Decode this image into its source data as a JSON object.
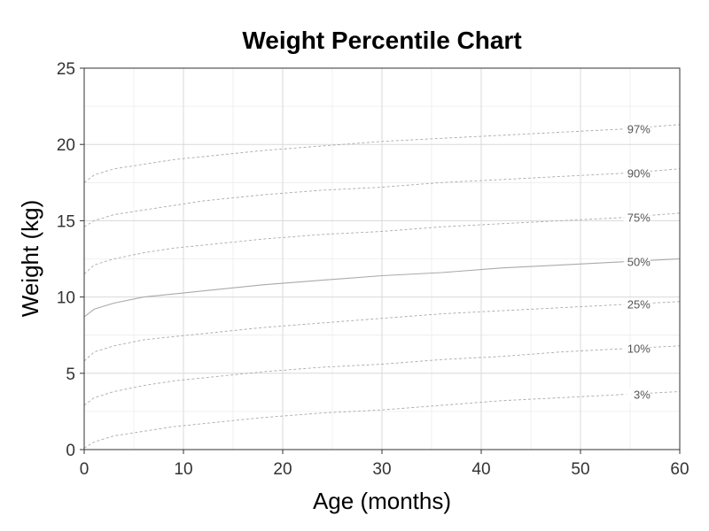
{
  "chart_data": {
    "type": "line",
    "title": "Weight Percentile Chart",
    "xlabel": "Age (months)",
    "ylabel": "Weight (kg)",
    "xlim": [
      0,
      60
    ],
    "ylim": [
      0,
      25
    ],
    "x_ticks": [
      0,
      10,
      20,
      30,
      40,
      50,
      60
    ],
    "y_ticks": [
      0,
      5,
      10,
      15,
      20,
      25
    ],
    "grid": true,
    "x": [
      0,
      1,
      2,
      3,
      6,
      9,
      12,
      18,
      24,
      30,
      36,
      42,
      48,
      54,
      60
    ],
    "series": [
      {
        "name": "97%",
        "style": "dashed",
        "values": [
          17.5,
          18.0,
          18.2,
          18.4,
          18.7,
          19.0,
          19.2,
          19.6,
          19.9,
          20.2,
          20.4,
          20.6,
          20.8,
          21.0,
          21.3
        ]
      },
      {
        "name": "90%",
        "style": "dashed",
        "values": [
          14.6,
          15.0,
          15.2,
          15.4,
          15.7,
          16.0,
          16.3,
          16.7,
          17.0,
          17.2,
          17.5,
          17.7,
          17.9,
          18.1,
          18.4
        ]
      },
      {
        "name": "75%",
        "style": "dashed",
        "values": [
          11.5,
          12.1,
          12.3,
          12.5,
          12.9,
          13.2,
          13.4,
          13.8,
          14.1,
          14.3,
          14.6,
          14.8,
          15.0,
          15.2,
          15.5
        ]
      },
      {
        "name": "50%",
        "style": "solid",
        "values": [
          8.7,
          9.2,
          9.4,
          9.6,
          10.0,
          10.2,
          10.4,
          10.8,
          11.1,
          11.4,
          11.6,
          11.9,
          12.1,
          12.3,
          12.5
        ]
      },
      {
        "name": "25%",
        "style": "dashed",
        "values": [
          5.8,
          6.4,
          6.6,
          6.8,
          7.2,
          7.4,
          7.6,
          8.0,
          8.3,
          8.6,
          8.9,
          9.1,
          9.3,
          9.5,
          9.7
        ]
      },
      {
        "name": "10%",
        "style": "dashed",
        "values": [
          2.9,
          3.4,
          3.6,
          3.8,
          4.2,
          4.5,
          4.7,
          5.1,
          5.4,
          5.6,
          5.9,
          6.1,
          6.4,
          6.6,
          6.8
        ]
      },
      {
        "name": "3%",
        "style": "dashed",
        "values": [
          0.1,
          0.5,
          0.7,
          0.9,
          1.2,
          1.5,
          1.7,
          2.1,
          2.4,
          2.6,
          2.9,
          3.2,
          3.4,
          3.6,
          3.8
        ]
      }
    ],
    "line_color": "#aaaaaa",
    "grid_major_color": "#d9d9d9",
    "grid_minor_color": "#ececec",
    "panel_border_color": "#333333"
  }
}
